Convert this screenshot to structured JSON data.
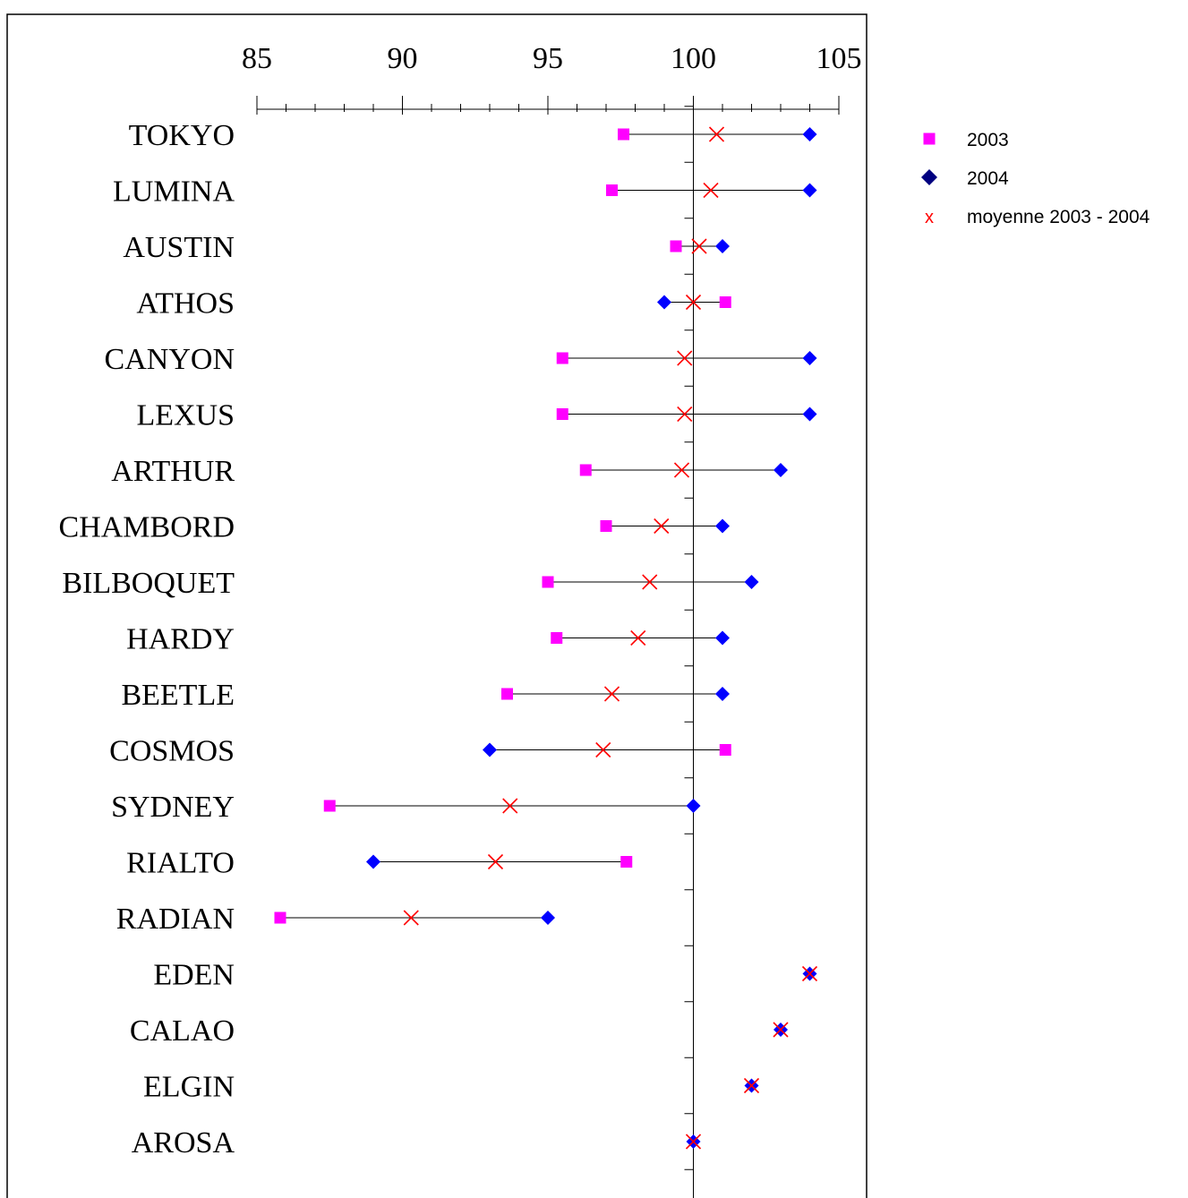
{
  "chart_data": {
    "type": "scatter",
    "title": "",
    "xlabel": "",
    "ylabel": "",
    "xlim": [
      85,
      105
    ],
    "x_ticks": [
      85,
      90,
      95,
      100,
      105
    ],
    "x_ticks_labels": [
      "85",
      "90",
      "95",
      "100",
      "105"
    ],
    "grid": false,
    "legend_position": "right",
    "reference_line_x": 100,
    "categories": [
      "TOKYO",
      "LUMINA",
      "AUSTIN",
      "ATHOS",
      "CANYON",
      "LEXUS",
      "ARTHUR",
      "CHAMBORD",
      "BILBOQUET",
      "HARDY",
      "BEETLE",
      "COSMOS",
      "SYDNEY",
      "RIALTO",
      "RADIAN",
      "EDEN",
      "CALAO",
      "ELGIN",
      "AROSA"
    ],
    "series": [
      {
        "name": "2003",
        "marker": "square",
        "color": "#ff00ff",
        "values": [
          97.6,
          97.2,
          99.4,
          101.1,
          95.5,
          95.5,
          96.3,
          97.0,
          95.0,
          95.3,
          93.6,
          101.1,
          87.5,
          97.7,
          85.8,
          null,
          null,
          null,
          null
        ]
      },
      {
        "name": "2004",
        "marker": "diamond",
        "color": "#0000ff",
        "legend_color": "#000080",
        "values": [
          104.0,
          104.0,
          101.0,
          99.0,
          104.0,
          104.0,
          103.0,
          101.0,
          102.0,
          101.0,
          101.0,
          93.0,
          100.0,
          89.0,
          95.0,
          104.0,
          103.0,
          102.0,
          100.0
        ]
      },
      {
        "name": "moyenne 2003 - 2004",
        "marker": "x",
        "color": "#ff0000",
        "values": [
          100.8,
          100.6,
          100.2,
          100.0,
          99.7,
          99.7,
          99.6,
          98.9,
          98.5,
          98.1,
          97.2,
          96.9,
          93.7,
          93.2,
          90.3,
          104.0,
          103.0,
          102.0,
          100.0
        ]
      }
    ],
    "range_line_color": "#000000"
  }
}
